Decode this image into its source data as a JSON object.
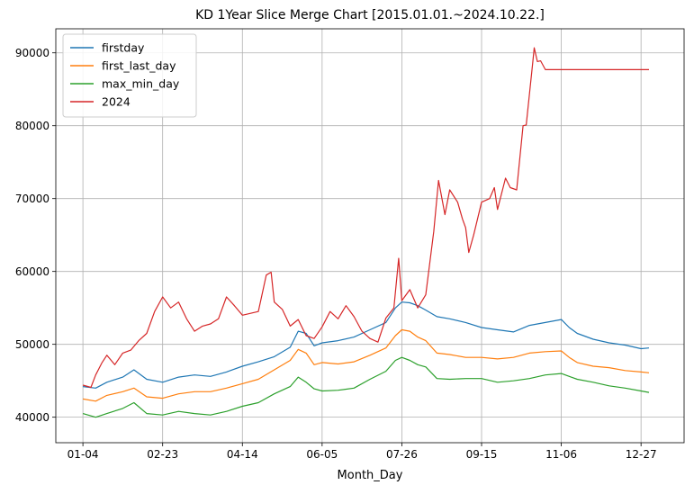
{
  "chart_data": {
    "type": "line",
    "title": "KD 1Year Slice Merge Chart [2015.01.01.~2024.10.22.]",
    "xlabel": "Month_Day",
    "ylabel": "",
    "xlim": [
      -17,
      377
    ],
    "ylim": [
      36500,
      93300
    ],
    "x_ticks": [
      {
        "label": "01-04",
        "x": 0
      },
      {
        "label": "02-23",
        "x": 50
      },
      {
        "label": "04-14",
        "x": 100
      },
      {
        "label": "06-05",
        "x": 150
      },
      {
        "label": "07-26",
        "x": 200
      },
      {
        "label": "09-15",
        "x": 250
      },
      {
        "label": "11-06",
        "x": 300
      },
      {
        "label": "12-27",
        "x": 350
      }
    ],
    "y_ticks": [
      40000,
      50000,
      60000,
      70000,
      80000,
      90000
    ],
    "grid": true,
    "legend_position": "top-left",
    "series": [
      {
        "name": "firstday",
        "color": "#1f77b4",
        "points": [
          [
            0,
            44200
          ],
          [
            8,
            44000
          ],
          [
            15,
            44800
          ],
          [
            25,
            45500
          ],
          [
            32,
            46500
          ],
          [
            40,
            45200
          ],
          [
            50,
            44800
          ],
          [
            60,
            45500
          ],
          [
            70,
            45800
          ],
          [
            80,
            45600
          ],
          [
            90,
            46200
          ],
          [
            100,
            47000
          ],
          [
            110,
            47600
          ],
          [
            120,
            48300
          ],
          [
            130,
            49600
          ],
          [
            135,
            51800
          ],
          [
            140,
            51500
          ],
          [
            145,
            49800
          ],
          [
            150,
            50200
          ],
          [
            160,
            50500
          ],
          [
            170,
            51000
          ],
          [
            180,
            52000
          ],
          [
            190,
            53000
          ],
          [
            196,
            55000
          ],
          [
            200,
            55800
          ],
          [
            205,
            55700
          ],
          [
            210,
            55300
          ],
          [
            215,
            54700
          ],
          [
            222,
            53800
          ],
          [
            230,
            53500
          ],
          [
            240,
            53000
          ],
          [
            250,
            52300
          ],
          [
            260,
            52000
          ],
          [
            270,
            51700
          ],
          [
            280,
            52600
          ],
          [
            290,
            53000
          ],
          [
            300,
            53400
          ],
          [
            305,
            52300
          ],
          [
            310,
            51500
          ],
          [
            320,
            50700
          ],
          [
            330,
            50200
          ],
          [
            340,
            49900
          ],
          [
            350,
            49400
          ],
          [
            355,
            49500
          ]
        ]
      },
      {
        "name": "first_last_day",
        "color": "#ff7f0e",
        "points": [
          [
            0,
            42500
          ],
          [
            8,
            42200
          ],
          [
            15,
            43000
          ],
          [
            25,
            43500
          ],
          [
            32,
            44000
          ],
          [
            40,
            42800
          ],
          [
            50,
            42600
          ],
          [
            60,
            43200
          ],
          [
            70,
            43500
          ],
          [
            80,
            43500
          ],
          [
            90,
            44000
          ],
          [
            100,
            44600
          ],
          [
            110,
            45200
          ],
          [
            120,
            46500
          ],
          [
            130,
            47800
          ],
          [
            135,
            49300
          ],
          [
            140,
            48800
          ],
          [
            145,
            47200
          ],
          [
            150,
            47500
          ],
          [
            160,
            47300
          ],
          [
            170,
            47600
          ],
          [
            180,
            48500
          ],
          [
            190,
            49500
          ],
          [
            196,
            51200
          ],
          [
            200,
            52000
          ],
          [
            205,
            51800
          ],
          [
            210,
            51000
          ],
          [
            215,
            50500
          ],
          [
            222,
            48800
          ],
          [
            230,
            48600
          ],
          [
            240,
            48200
          ],
          [
            250,
            48200
          ],
          [
            260,
            48000
          ],
          [
            270,
            48200
          ],
          [
            280,
            48800
          ],
          [
            290,
            49000
          ],
          [
            300,
            49100
          ],
          [
            305,
            48200
          ],
          [
            310,
            47500
          ],
          [
            320,
            47000
          ],
          [
            330,
            46800
          ],
          [
            340,
            46400
          ],
          [
            350,
            46200
          ],
          [
            355,
            46100
          ]
        ]
      },
      {
        "name": "max_min_day",
        "color": "#2ca02c",
        "points": [
          [
            0,
            40500
          ],
          [
            8,
            40000
          ],
          [
            15,
            40500
          ],
          [
            25,
            41200
          ],
          [
            32,
            42000
          ],
          [
            40,
            40500
          ],
          [
            50,
            40300
          ],
          [
            60,
            40800
          ],
          [
            70,
            40500
          ],
          [
            80,
            40300
          ],
          [
            90,
            40800
          ],
          [
            100,
            41500
          ],
          [
            110,
            42000
          ],
          [
            120,
            43200
          ],
          [
            130,
            44200
          ],
          [
            135,
            45500
          ],
          [
            140,
            44800
          ],
          [
            145,
            43900
          ],
          [
            150,
            43600
          ],
          [
            160,
            43700
          ],
          [
            170,
            44000
          ],
          [
            180,
            45200
          ],
          [
            190,
            46300
          ],
          [
            196,
            47800
          ],
          [
            200,
            48200
          ],
          [
            205,
            47800
          ],
          [
            210,
            47200
          ],
          [
            215,
            46900
          ],
          [
            222,
            45300
          ],
          [
            230,
            45200
          ],
          [
            240,
            45300
          ],
          [
            250,
            45300
          ],
          [
            260,
            44800
          ],
          [
            270,
            45000
          ],
          [
            280,
            45300
          ],
          [
            290,
            45800
          ],
          [
            300,
            46000
          ],
          [
            305,
            45600
          ],
          [
            310,
            45200
          ],
          [
            320,
            44800
          ],
          [
            330,
            44300
          ],
          [
            340,
            44000
          ],
          [
            350,
            43600
          ],
          [
            355,
            43400
          ]
        ]
      },
      {
        "name": "2024",
        "color": "#d62728",
        "points": [
          [
            0,
            44400
          ],
          [
            5,
            44100
          ],
          [
            8,
            45800
          ],
          [
            12,
            47500
          ],
          [
            15,
            48500
          ],
          [
            20,
            47200
          ],
          [
            25,
            48800
          ],
          [
            30,
            49200
          ],
          [
            35,
            50500
          ],
          [
            40,
            51500
          ],
          [
            45,
            54500
          ],
          [
            50,
            56500
          ],
          [
            55,
            55000
          ],
          [
            60,
            55800
          ],
          [
            65,
            53500
          ],
          [
            70,
            51800
          ],
          [
            75,
            52500
          ],
          [
            80,
            52800
          ],
          [
            85,
            53500
          ],
          [
            90,
            56500
          ],
          [
            95,
            55300
          ],
          [
            100,
            54000
          ],
          [
            110,
            54500
          ],
          [
            115,
            59500
          ],
          [
            118,
            59900
          ],
          [
            120,
            55800
          ],
          [
            125,
            54800
          ],
          [
            130,
            52500
          ],
          [
            135,
            53400
          ],
          [
            140,
            51200
          ],
          [
            145,
            50800
          ],
          [
            150,
            52400
          ],
          [
            155,
            54500
          ],
          [
            160,
            53500
          ],
          [
            165,
            55300
          ],
          [
            170,
            53800
          ],
          [
            175,
            51800
          ],
          [
            180,
            50800
          ],
          [
            185,
            50300
          ],
          [
            190,
            53600
          ],
          [
            195,
            55000
          ],
          [
            198,
            61800
          ],
          [
            200,
            56000
          ],
          [
            205,
            57500
          ],
          [
            210,
            55000
          ],
          [
            215,
            56800
          ],
          [
            220,
            65500
          ],
          [
            223,
            72500
          ],
          [
            227,
            67800
          ],
          [
            230,
            71200
          ],
          [
            235,
            69500
          ],
          [
            238,
            67200
          ],
          [
            240,
            66000
          ],
          [
            242,
            62600
          ],
          [
            245,
            65000
          ],
          [
            250,
            69500
          ],
          [
            255,
            70000
          ],
          [
            258,
            71500
          ],
          [
            260,
            68500
          ],
          [
            265,
            72800
          ],
          [
            268,
            71500
          ],
          [
            272,
            71200
          ],
          [
            276,
            80000
          ],
          [
            278,
            80100
          ],
          [
            282,
            88500
          ],
          [
            283,
            90700
          ],
          [
            285,
            88800
          ],
          [
            287,
            88900
          ],
          [
            290,
            87700
          ],
          [
            300,
            87700
          ],
          [
            320,
            87700
          ],
          [
            340,
            87700
          ],
          [
            355,
            87700
          ]
        ]
      }
    ]
  }
}
